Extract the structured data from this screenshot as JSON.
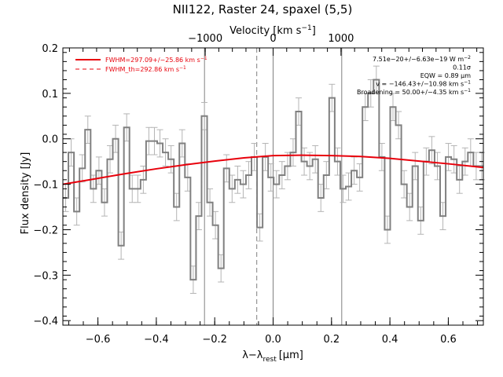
{
  "chart_data": {
    "type": "line",
    "title": "NII122, Raster 24, spaxel (5,5)",
    "xlabel": "λ−λ",
    "xlabel_sub": "rest",
    "xlabel_unit": "[μm]",
    "ylabel": "Flux density [Jy]",
    "top_xlabel": "Velocity [km s",
    "top_xlabel_sup": "−1",
    "top_xlabel_end": "]",
    "xlim": [
      -0.72,
      0.72
    ],
    "ylim": [
      -0.41,
      0.2
    ],
    "xticks": [
      -0.6,
      -0.4,
      -0.2,
      0.0,
      0.2,
      0.4,
      0.6
    ],
    "xtick_labels": [
      "−0.6",
      "−0.4",
      "−0.2",
      "0.0",
      "0.2",
      "0.4",
      "0.6"
    ],
    "yticks": [
      -0.4,
      -0.3,
      -0.2,
      -0.1,
      0.0,
      0.1,
      0.2
    ],
    "ytick_labels": [
      "−0.4",
      "−0.3",
      "−0.2",
      "−0.1",
      "0.0",
      "0.1",
      "0.2"
    ],
    "top_ticks": [
      -1000,
      0,
      1000
    ],
    "top_tick_labels": [
      "−1000",
      "0",
      "1000"
    ],
    "vertical_lines": [
      {
        "x": -0.235,
        "style": "solid"
      },
      {
        "x": 0.0,
        "style": "solid"
      },
      {
        "x": 0.235,
        "style": "solid"
      },
      {
        "x": -0.056,
        "style": "dashed"
      }
    ],
    "spectrum": {
      "x": [
        -0.72,
        -0.701,
        -0.682,
        -0.663,
        -0.644,
        -0.625,
        -0.606,
        -0.587,
        -0.568,
        -0.549,
        -0.53,
        -0.511,
        -0.492,
        -0.473,
        -0.454,
        -0.435,
        -0.416,
        -0.397,
        -0.378,
        -0.359,
        -0.34,
        -0.321,
        -0.302,
        -0.283,
        -0.264,
        -0.245,
        -0.226,
        -0.207,
        -0.188,
        -0.169,
        -0.15,
        -0.131,
        -0.112,
        -0.093,
        -0.074,
        -0.055,
        -0.036,
        -0.017,
        0.002,
        0.021,
        0.04,
        0.059,
        0.078,
        0.097,
        0.116,
        0.135,
        0.154,
        0.173,
        0.192,
        0.211,
        0.23,
        0.249,
        0.268,
        0.287,
        0.306,
        0.325,
        0.344,
        0.363,
        0.382,
        0.401,
        0.42,
        0.439,
        0.458,
        0.477,
        0.496,
        0.515,
        0.534,
        0.553,
        0.572,
        0.591,
        0.61,
        0.629,
        0.648,
        0.667,
        0.686,
        0.705
      ],
      "y": [
        -0.13,
        -0.03,
        -0.16,
        -0.065,
        0.02,
        -0.11,
        -0.07,
        -0.14,
        -0.045,
        0.0,
        -0.235,
        0.025,
        -0.11,
        -0.11,
        -0.09,
        -0.005,
        -0.005,
        -0.01,
        -0.03,
        -0.045,
        -0.15,
        -0.01,
        -0.085,
        -0.31,
        -0.17,
        0.05,
        -0.14,
        -0.19,
        -0.285,
        -0.065,
        -0.11,
        -0.09,
        -0.1,
        -0.08,
        -0.04,
        -0.195,
        -0.04,
        -0.085,
        -0.1,
        -0.08,
        -0.06,
        -0.03,
        0.06,
        -0.05,
        -0.06,
        -0.045,
        -0.13,
        -0.08,
        0.09,
        -0.05,
        -0.11,
        -0.105,
        -0.07,
        -0.085,
        0.07,
        0.1,
        0.13,
        -0.04,
        -0.2,
        0.07,
        0.03,
        -0.1,
        -0.15,
        -0.06,
        -0.18,
        -0.05,
        -0.025,
        -0.06,
        -0.17,
        -0.04,
        -0.045,
        -0.09,
        -0.05,
        -0.03,
        -0.06,
        -0.06
      ],
      "errors": [
        0.03,
        0.03,
        0.03,
        0.03,
        0.03,
        0.03,
        0.03,
        0.03,
        0.03,
        0.03,
        0.03,
        0.03,
        0.03,
        0.03,
        0.03,
        0.03,
        0.03,
        0.03,
        0.03,
        0.03,
        0.03,
        0.03,
        0.03,
        0.03,
        0.03,
        0.03,
        0.03,
        0.03,
        0.03,
        0.03,
        0.03,
        0.03,
        0.03,
        0.03,
        0.03,
        0.03,
        0.03,
        0.03,
        0.03,
        0.03,
        0.03,
        0.03,
        0.03,
        0.03,
        0.03,
        0.03,
        0.03,
        0.03,
        0.03,
        0.03,
        0.03,
        0.03,
        0.03,
        0.03,
        0.03,
        0.03,
        0.03,
        0.03,
        0.03,
        0.03,
        0.03,
        0.03,
        0.03,
        0.03,
        0.03,
        0.03,
        0.03,
        0.03,
        0.03,
        0.03,
        0.03,
        0.03,
        0.03,
        0.03,
        0.03,
        0.03
      ],
      "color": "#808080",
      "error_color": "#b4b4b4"
    },
    "fit": {
      "x": [
        -0.72,
        -0.6,
        -0.5,
        -0.4,
        -0.3,
        -0.2,
        -0.1,
        0.0,
        0.1,
        0.2,
        0.3,
        0.4,
        0.5,
        0.6,
        0.72
      ],
      "y": [
        -0.1,
        -0.087,
        -0.076,
        -0.066,
        -0.057,
        -0.049,
        -0.042,
        -0.037,
        -0.036,
        -0.037,
        -0.039,
        -0.043,
        -0.049,
        -0.055,
        -0.063
      ],
      "color": "#e8000b"
    },
    "legend": [
      {
        "label": "FWHM=297.09+/−25.86 km s",
        "sup": "−1",
        "style": "solid"
      },
      {
        "label": "FWHM_th=292.86 km s",
        "sup": "−1",
        "style": "dashed"
      }
    ],
    "annotations": [
      {
        "text": "7.51e−20+/−6.63e−19 W m",
        "sup": "−2"
      },
      {
        "text": "0.11σ",
        "sup": ""
      },
      {
        "text": "EQW = 0.89 μm",
        "sup": ""
      },
      {
        "text": "v = −146.43+/−10.98 km s",
        "sup": "−1"
      },
      {
        "text": "Broadening = 50.00+/−4.35 km s",
        "sup": "−1"
      }
    ]
  }
}
